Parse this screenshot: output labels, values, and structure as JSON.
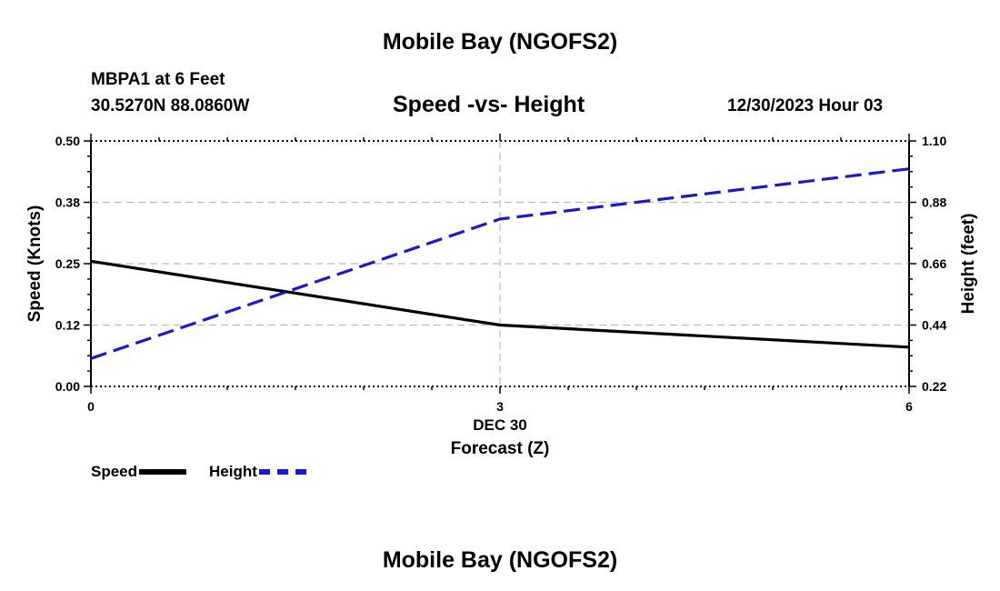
{
  "page": {
    "title_top": "Mobile Bay (NGOFS2)",
    "title_bottom": "Mobile Bay (NGOFS2)",
    "station": "MBPA1 at 6 Feet",
    "coords": "30.5270N  88.0860W",
    "datetime": "12/30/2023 Hour 03"
  },
  "colors": {
    "speed": "#000000",
    "height": "#1a1acc",
    "grid": "#bbbbbb"
  },
  "chart_data": {
    "type": "line",
    "title": "Speed -vs- Height",
    "xlabel": "Forecast (Z)",
    "xlabel_date": "DEC 30",
    "x": [
      0,
      3,
      6
    ],
    "x_ticks": [
      "0",
      "3",
      "6"
    ],
    "xlim": [
      0,
      6
    ],
    "ylabel_left": "Speed (Knots)",
    "ylabel_right": "Height (feet)",
    "ylim_left": [
      0.0,
      0.5
    ],
    "ylim_right": [
      0.22,
      1.1
    ],
    "yticks_left": [
      "0.00",
      "0.12",
      "0.25",
      "0.38",
      "0.50"
    ],
    "yticks_right": [
      "0.22",
      "0.44",
      "0.66",
      "0.88",
      "1.10"
    ],
    "series": [
      {
        "name": "Speed",
        "axis": "left",
        "style": "solid",
        "values": [
          0.255,
          0.125,
          0.08
        ]
      },
      {
        "name": "Height",
        "axis": "right",
        "style": "dashed",
        "values": [
          0.32,
          0.82,
          1.0
        ]
      }
    ],
    "grid": true,
    "legend": [
      "Speed",
      "Height"
    ],
    "legend_position": "bottom-left"
  }
}
